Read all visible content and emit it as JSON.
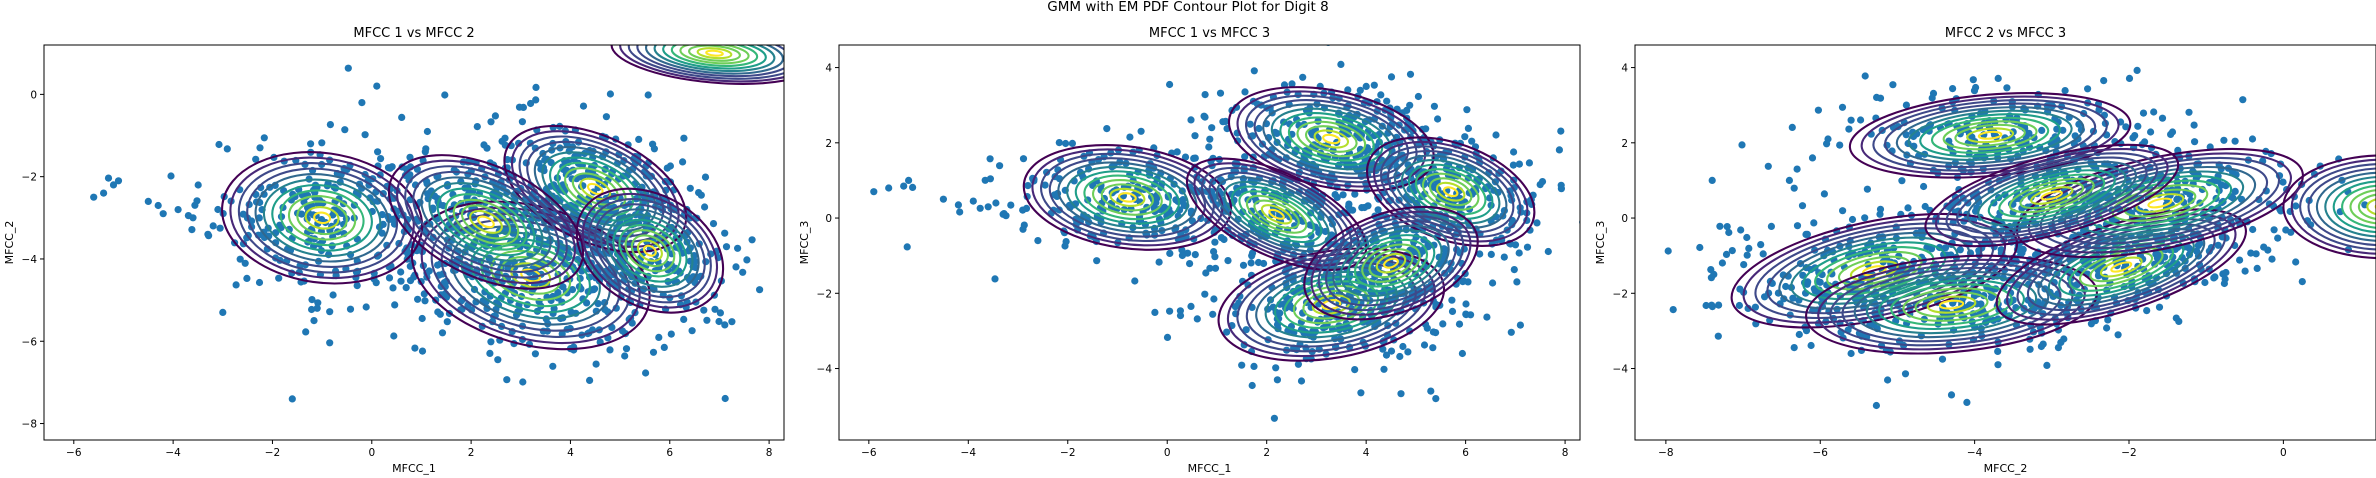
{
  "figure": {
    "suptitle": "GMM with EM PDF Contour Plot for Digit 8"
  },
  "style": {
    "point_color": "#1f77b4",
    "contour_colormap": [
      "#440154",
      "#482878",
      "#3e4989",
      "#31688e",
      "#26828e",
      "#1f9e89",
      "#35b779",
      "#6ece58",
      "#b5de2b",
      "#fde725"
    ]
  },
  "chart_data": [
    {
      "type": "scatter",
      "overlay": "contour",
      "title": "MFCC 1 vs MFCC 2",
      "xlabel": "MFCC_1",
      "ylabel": "MFCC_2",
      "xlim": [
        -6.6,
        8.3
      ],
      "ylim": [
        -8.4,
        1.2
      ],
      "xticks": [
        -6,
        -4,
        -2,
        0,
        2,
        4,
        6,
        8
      ],
      "yticks": [
        0,
        -2,
        -4,
        -6,
        -8
      ],
      "grid": false,
      "components": [
        {
          "mean": [
            -1.0,
            -3.0
          ],
          "sx": 1.35,
          "sy": 1.05,
          "angle": -8,
          "spread": 1.5,
          "n": 230
        },
        {
          "mean": [
            3.2,
            -4.4
          ],
          "sx": 1.75,
          "sy": 1.2,
          "angle": -15,
          "spread": 1.4,
          "n": 320
        },
        {
          "mean": [
            4.5,
            -2.3
          ],
          "sx": 1.45,
          "sy": 0.95,
          "angle": -25,
          "spread": 1.35,
          "n": 240
        },
        {
          "mean": [
            2.3,
            -3.1
          ],
          "sx": 1.55,
          "sy": 1.0,
          "angle": -25,
          "spread": 1.35,
          "n": 200
        },
        {
          "mean": [
            5.6,
            -3.8
          ],
          "sx": 1.05,
          "sy": 0.9,
          "angle": -30,
          "spread": 1.5,
          "n": 160
        },
        {
          "mean": [
            6.9,
            1.0
          ],
          "sx": 1.6,
          "sy": 0.55,
          "angle": -5,
          "spread": 1.3,
          "n": 0
        }
      ],
      "outliers": [
        [
          -5.6,
          -2.5
        ],
        [
          -5.4,
          -2.4
        ],
        [
          -5.2,
          -2.2
        ],
        [
          -5.1,
          -2.1
        ],
        [
          -4.5,
          -2.6
        ],
        [
          -4.3,
          -2.7
        ],
        [
          -4.2,
          -2.9
        ],
        [
          -3.9,
          -2.8
        ],
        [
          -3.6,
          -3.0
        ],
        [
          -3.3,
          -3.4
        ],
        [
          -3.0,
          -5.3
        ],
        [
          -1.6,
          -7.4
        ],
        [
          -1.1,
          -5.2
        ],
        [
          -0.2,
          -0.2
        ],
        [
          0.1,
          0.2
        ]
      ]
    },
    {
      "type": "scatter",
      "overlay": "contour",
      "title": "MFCC 1 vs MFCC 3",
      "xlabel": "MFCC_1",
      "ylabel": "MFCC_3",
      "xlim": [
        -6.6,
        8.3
      ],
      "ylim": [
        -5.9,
        4.6
      ],
      "xticks": [
        -6,
        -4,
        -2,
        0,
        2,
        4,
        6,
        8
      ],
      "yticks": [
        4,
        2,
        0,
        -2,
        -4
      ],
      "grid": false,
      "components": [
        {
          "mean": [
            -0.8,
            0.55
          ],
          "sx": 1.4,
          "sy": 0.9,
          "angle": -8,
          "spread": 1.5,
          "n": 220
        },
        {
          "mean": [
            3.3,
            2.1
          ],
          "sx": 1.55,
          "sy": 0.95,
          "angle": -12,
          "spread": 1.35,
          "n": 260
        },
        {
          "mean": [
            3.3,
            -2.3
          ],
          "sx": 1.7,
          "sy": 1.05,
          "angle": 10,
          "spread": 1.35,
          "n": 280
        },
        {
          "mean": [
            5.7,
            0.7
          ],
          "sx": 1.3,
          "sy": 0.95,
          "angle": -20,
          "spread": 1.35,
          "n": 200
        },
        {
          "mean": [
            2.2,
            0.1
          ],
          "sx": 1.5,
          "sy": 0.85,
          "angle": -25,
          "spread": 1.3,
          "n": 160
        },
        {
          "mean": [
            4.5,
            -1.2
          ],
          "sx": 1.3,
          "sy": 0.95,
          "angle": 20,
          "spread": 1.4,
          "n": 160
        }
      ],
      "outliers": [
        [
          -5.9,
          0.7
        ],
        [
          -5.6,
          0.8
        ],
        [
          -5.3,
          0.85
        ],
        [
          -5.2,
          1.0
        ],
        [
          -4.5,
          0.5
        ],
        [
          -4.2,
          0.35
        ],
        [
          -3.9,
          0.45
        ],
        [
          -3.6,
          0.3
        ],
        [
          -3.3,
          0.1
        ],
        [
          -2.9,
          -0.3
        ],
        [
          -2.6,
          -0.6
        ],
        [
          5.3,
          -4.6
        ],
        [
          5.4,
          -4.8
        ]
      ]
    },
    {
      "type": "scatter",
      "overlay": "contour",
      "title": "MFCC 2 vs MFCC 3",
      "xlabel": "MFCC_2",
      "ylabel": "MFCC_3",
      "xlim": [
        -8.4,
        1.2
      ],
      "ylim": [
        -5.9,
        4.6
      ],
      "xticks": [
        -8,
        -6,
        -4,
        -2,
        0
      ],
      "yticks": [
        4,
        2,
        0,
        -2,
        -4
      ],
      "grid": false,
      "components": [
        {
          "mean": [
            -5.3,
            -1.4
          ],
          "sx": 1.3,
          "sy": 0.9,
          "angle": 12,
          "spread": 1.45,
          "n": 220
        },
        {
          "mean": [
            -4.3,
            -2.3
          ],
          "sx": 1.35,
          "sy": 0.9,
          "angle": 5,
          "spread": 1.4,
          "n": 220
        },
        {
          "mean": [
            -3.8,
            2.2
          ],
          "sx": 1.35,
          "sy": 0.8,
          "angle": 5,
          "spread": 1.35,
          "n": 220
        },
        {
          "mean": [
            -2.1,
            -1.3
          ],
          "sx": 1.25,
          "sy": 0.85,
          "angle": 18,
          "spread": 1.35,
          "n": 200
        },
        {
          "mean": [
            -1.6,
            0.4
          ],
          "sx": 1.4,
          "sy": 0.9,
          "angle": 12,
          "spread": 1.35,
          "n": 220
        },
        {
          "mean": [
            -3.0,
            0.6
          ],
          "sx": 1.3,
          "sy": 0.8,
          "angle": 15,
          "spread": 1.3,
          "n": 150
        },
        {
          "mean": [
            1.3,
            0.3
          ],
          "sx": 1.0,
          "sy": 1.05,
          "angle": 0,
          "spread": 1.3,
          "n": 0
        }
      ],
      "outliers": [
        [
          -7.4,
          1.0
        ],
        [
          -6.4,
          1.0
        ],
        [
          -6.3,
          1.3
        ],
        [
          -6.1,
          1.6
        ],
        [
          -5.9,
          2.1
        ],
        [
          -5.6,
          2.6
        ],
        [
          -5.6,
          -3.6
        ],
        [
          -4.1,
          -4.9
        ],
        [
          -4.3,
          -4.7
        ],
        [
          -0.4,
          2.1
        ]
      ]
    }
  ]
}
